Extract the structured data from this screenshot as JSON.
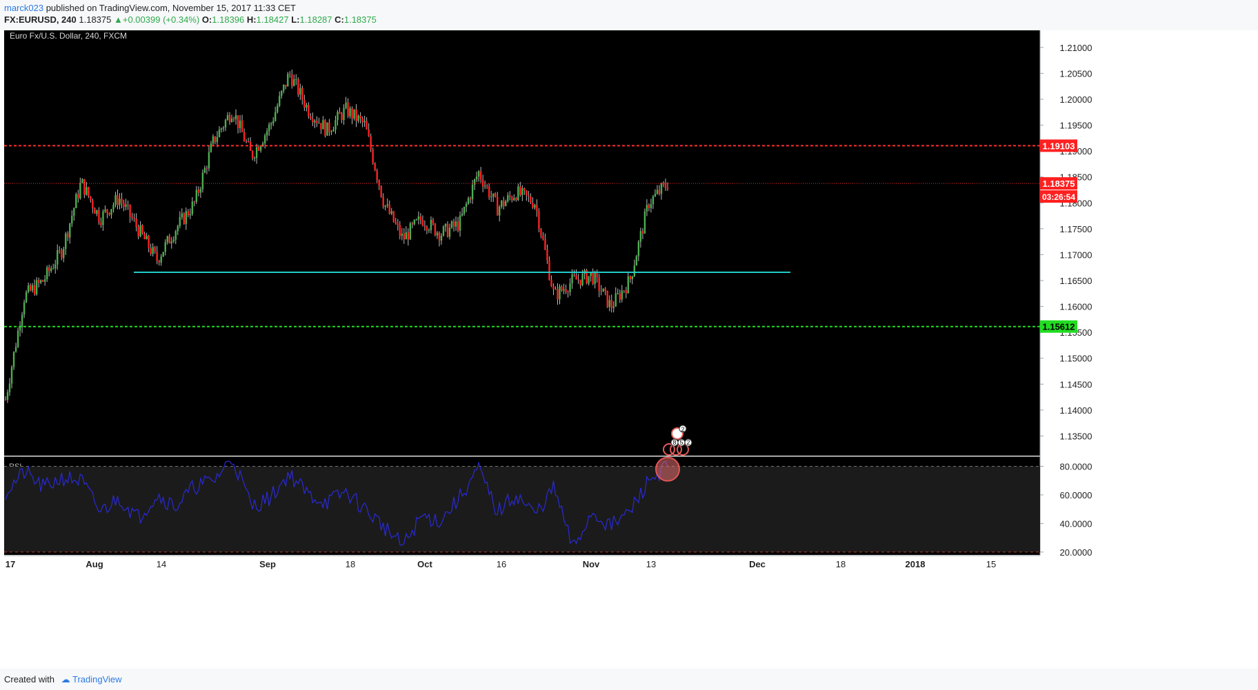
{
  "header": {
    "author": "marck023",
    "published_text": " published on TradingView.com, November 15, 2017 11:33 CET",
    "symbol": "FX:EURUSD, 240",
    "last": "1.18375",
    "change": "+0.00399 (+0.34%)",
    "o_label": "O:",
    "o": "1.18396",
    "h_label": "H:",
    "h": "1.18427",
    "l_label": "L:",
    "l": "1.18287",
    "c_label": "C:",
    "c": "1.18375"
  },
  "footer": {
    "created_with": "Created with",
    "brand": "TradingView"
  },
  "chart_data": [
    {
      "type": "line",
      "title": "Euro Fx/U.S. Dollar, 240, FXCM",
      "description_note": "",
      "ylim": [
        1.1312,
        1.2141
      ],
      "y_ticks": [
        "1.21000",
        "1.20500",
        "1.20000",
        "1.19500",
        "1.19000",
        "1.18500",
        "1.18000",
        "1.17500",
        "1.17000",
        "1.16500",
        "1.16000",
        "1.15500",
        "1.15000",
        "1.14500",
        "1.14000",
        "1.13500"
      ],
      "x_ticks": [
        "17",
        "Aug",
        "14",
        "Sep",
        "18",
        "Oct",
        "16",
        "Nov",
        "13",
        "Dec",
        "18",
        "2018",
        "15"
      ],
      "series": [
        {
          "x": [
            "Jul 17",
            "Jul 21",
            "Jul 24",
            "Jul 28",
            "Aug 1",
            "Aug 4",
            "Aug 8",
            "Aug 11",
            "Aug 15",
            "Aug 18",
            "Aug 22",
            "Aug 25",
            "Aug 29",
            "Sep 1",
            "Sep 5",
            "Sep 8",
            "Sep 12",
            "Sep 15",
            "Sep 19",
            "Sep 22",
            "Sep 26",
            "Sep 29",
            "Oct 3",
            "Oct 6",
            "Oct 10",
            "Oct 13",
            "Oct 17",
            "Oct 20",
            "Oct 24",
            "Oct 27",
            "Oct 31",
            "Nov 3",
            "Nov 7",
            "Nov 10",
            "Nov 14",
            "Nov 15"
          ],
          "values": [
            1.142,
            1.162,
            1.165,
            1.171,
            1.184,
            1.177,
            1.181,
            1.175,
            1.169,
            1.175,
            1.18,
            1.192,
            1.198,
            1.189,
            1.195,
            1.205,
            1.198,
            1.194,
            1.198,
            1.195,
            1.18,
            1.173,
            1.177,
            1.174,
            1.176,
            1.186,
            1.179,
            1.182,
            1.18,
            1.162,
            1.165,
            1.166,
            1.16,
            1.165,
            1.18,
            1.1837
          ]
        }
      ],
      "levels": [
        {
          "value": 1.19103,
          "label": "1.19103",
          "color": "#ff2d2d",
          "style": "dashed"
        },
        {
          "value": 1.18375,
          "label": "1.18375",
          "color": "#ff2d2d",
          "style": "dotted"
        },
        {
          "value": 1.15612,
          "label": "1.15612",
          "color": "#22dd22",
          "style": "dashed"
        },
        {
          "value": 1.1666,
          "label": "",
          "color": "#22cccc",
          "style": "solid"
        }
      ],
      "countdown": "03:26:54",
      "event_badges": [
        "2",
        "8",
        "5",
        "2"
      ]
    },
    {
      "type": "line",
      "title": "RSI",
      "ylim": [
        18,
        87
      ],
      "y_ticks": [
        "80.0000",
        "60.0000",
        "40.0000",
        "20.0000"
      ],
      "bands": [
        80,
        20
      ],
      "series": [
        {
          "x": [
            "Jul 17",
            "Jul 21",
            "Jul 24",
            "Jul 28",
            "Aug 1",
            "Aug 4",
            "Aug 8",
            "Aug 11",
            "Aug 15",
            "Aug 18",
            "Aug 22",
            "Aug 25",
            "Aug 29",
            "Sep 1",
            "Sep 5",
            "Sep 8",
            "Sep 12",
            "Sep 15",
            "Sep 19",
            "Sep 22",
            "Sep 26",
            "Sep 29",
            "Oct 3",
            "Oct 6",
            "Oct 10",
            "Oct 13",
            "Oct 17",
            "Oct 20",
            "Oct 24",
            "Oct 27",
            "Oct 31",
            "Nov 3",
            "Nov 7",
            "Nov 10",
            "Nov 14",
            "Nov 15"
          ],
          "values": [
            62,
            76,
            65,
            72,
            70,
            48,
            58,
            44,
            60,
            52,
            66,
            70,
            86,
            52,
            58,
            75,
            60,
            55,
            62,
            50,
            38,
            24,
            45,
            42,
            58,
            78,
            48,
            60,
            46,
            65,
            22,
            48,
            38,
            48,
            70,
            80
          ]
        }
      ]
    }
  ]
}
